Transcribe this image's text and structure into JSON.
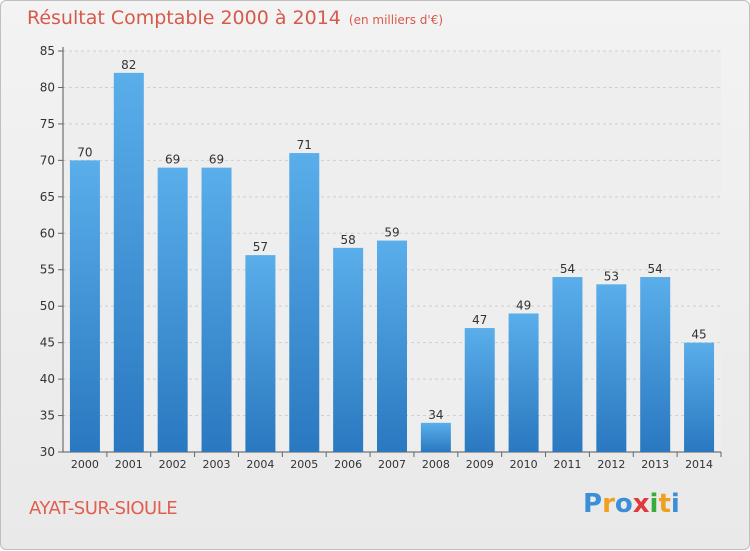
{
  "title": "Résultat Comptable 2000 à 2014",
  "subtitle": "(en milliers d'€)",
  "commune": "AYAT-SUR-SIOULE",
  "logo": {
    "letters": [
      "P",
      "r",
      "o",
      "x",
      "i",
      "t",
      "i"
    ],
    "colors": [
      "#3a8fd6",
      "#f0a020",
      "#3a8fd6",
      "#e03a3a",
      "#3aaa3a",
      "#f0a020",
      "#3a8fd6"
    ]
  },
  "chart_data": {
    "type": "bar",
    "categories": [
      "2000",
      "2001",
      "2002",
      "2003",
      "2004",
      "2005",
      "2006",
      "2007",
      "2008",
      "2009",
      "2010",
      "2011",
      "2012",
      "2013",
      "2014"
    ],
    "values": [
      70,
      82,
      69,
      69,
      57,
      71,
      58,
      59,
      34,
      47,
      49,
      54,
      53,
      54,
      45
    ],
    "ylim": [
      30,
      85
    ],
    "yticks": [
      30,
      35,
      40,
      45,
      50,
      55,
      60,
      65,
      70,
      75,
      80,
      85
    ],
    "grid": true,
    "bar_color_top": "#5aaeea",
    "bar_color_bottom": "#2a78c0"
  }
}
